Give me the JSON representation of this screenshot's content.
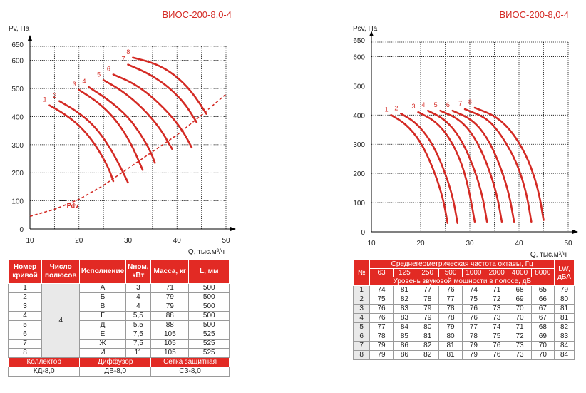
{
  "chart_data": [
    {
      "type": "line",
      "title": "ВИОС-200-8,0-4",
      "ylabel": "Pv, Па",
      "xlabel": "Q, тыс.м³/ч",
      "xlim": [
        10,
        50
      ],
      "ylim": [
        0,
        650
      ],
      "xticks": [
        "10",
        "20",
        "30",
        "40",
        "50"
      ],
      "yticks": [
        "0",
        "100",
        "200",
        "300",
        "400",
        "500",
        600,
        "650"
      ],
      "grid": true,
      "series": [
        {
          "name": "1",
          "points": [
            [
              14.0,
              440
            ],
            [
              17.0,
              410
            ],
            [
              20.0,
              370
            ],
            [
              23.0,
              310
            ],
            [
              26.0,
              220
            ],
            [
              27.0,
              170
            ]
          ]
        },
        {
          "name": "2",
          "points": [
            [
              16.0,
              455
            ],
            [
              19.5,
              420
            ],
            [
              23.0,
              370
            ],
            [
              26.0,
              300
            ],
            [
              28.5,
              220
            ],
            [
              30.0,
              165
            ]
          ]
        },
        {
          "name": "3",
          "points": [
            [
              20.0,
              495
            ],
            [
              24.0,
              450
            ],
            [
              27.5,
              390
            ],
            [
              30.5,
              310
            ],
            [
              33.0,
              210
            ]
          ]
        },
        {
          "name": "4",
          "points": [
            [
              22.0,
              505
            ],
            [
              26.0,
              460
            ],
            [
              30.0,
              400
            ],
            [
              32.5,
              340
            ],
            [
              34.5,
              280
            ],
            [
              35.5,
              235
            ]
          ]
        },
        {
          "name": "5",
          "points": [
            [
              25.0,
              530
            ],
            [
              29.0,
              490
            ],
            [
              33.0,
              430
            ],
            [
              36.5,
              360
            ],
            [
              39.0,
              285
            ]
          ]
        },
        {
          "name": "6",
          "points": [
            [
              27.0,
              550
            ],
            [
              31.0,
              520
            ],
            [
              35.0,
              470
            ],
            [
              39.0,
              400
            ],
            [
              41.5,
              340
            ],
            [
              43.0,
              290
            ]
          ]
        },
        {
          "name": "7",
          "points": [
            [
              30.0,
              585
            ],
            [
              34.0,
              555
            ],
            [
              38.0,
              510
            ],
            [
              41.5,
              450
            ],
            [
              44.0,
              380
            ]
          ]
        },
        {
          "name": "8",
          "points": [
            [
              31.0,
              610
            ],
            [
              35.5,
              590
            ],
            [
              39.5,
              550
            ],
            [
              43.0,
              490
            ],
            [
              46.0,
              410
            ]
          ]
        }
      ],
      "pdv_curve": {
        "name": "Pdv",
        "points": [
          [
            10,
            45
          ],
          [
            15,
            70
          ],
          [
            20,
            105
          ],
          [
            25,
            155
          ],
          [
            30,
            215
          ],
          [
            35,
            275
          ],
          [
            40,
            335
          ],
          [
            45,
            405
          ],
          [
            50,
            480
          ]
        ]
      },
      "colors": {
        "curve": "#d42a24",
        "grid": "#000000"
      }
    },
    {
      "type": "line",
      "title": "ВИОС-200-8,0-4",
      "ylabel": "Psv, Па",
      "xlabel": "Q, тыс.м³/ч",
      "xlim": [
        10,
        50
      ],
      "ylim": [
        0,
        650
      ],
      "xticks": [
        "10",
        "20",
        "30",
        "40",
        "50"
      ],
      "yticks": [
        "0",
        "100",
        "200",
        "300",
        "400",
        "500",
        "600",
        "650"
      ],
      "grid": true,
      "series": [
        {
          "name": "1",
          "points": [
            [
              14.0,
              400
            ],
            [
              17.0,
              370
            ],
            [
              20.0,
              310
            ],
            [
              22.5,
              220
            ],
            [
              24.5,
              120
            ],
            [
              25.5,
              30
            ]
          ]
        },
        {
          "name": "2",
          "points": [
            [
              16.0,
              405
            ],
            [
              19.0,
              375
            ],
            [
              22.0,
              315
            ],
            [
              24.5,
              225
            ],
            [
              26.5,
              125
            ],
            [
              27.5,
              30
            ]
          ]
        },
        {
          "name": "3",
          "points": [
            [
              19.5,
              410
            ],
            [
              23.0,
              380
            ],
            [
              26.0,
              320
            ],
            [
              28.5,
              230
            ],
            [
              30.0,
              130
            ],
            [
              31.0,
              35
            ]
          ]
        },
        {
          "name": "4",
          "points": [
            [
              21.5,
              415
            ],
            [
              25.0,
              385
            ],
            [
              28.0,
              325
            ],
            [
              30.5,
              235
            ],
            [
              32.5,
              130
            ],
            [
              33.5,
              35
            ]
          ]
        },
        {
          "name": "5",
          "points": [
            [
              24.0,
              415
            ],
            [
              28.0,
              385
            ],
            [
              31.0,
              325
            ],
            [
              33.5,
              235
            ],
            [
              35.5,
              130
            ],
            [
              36.5,
              35
            ]
          ]
        },
        {
          "name": "6",
          "points": [
            [
              26.5,
              415
            ],
            [
              30.5,
              385
            ],
            [
              33.5,
              325
            ],
            [
              36.0,
              235
            ],
            [
              38.0,
              130
            ],
            [
              39.0,
              35
            ]
          ]
        },
        {
          "name": "7",
          "points": [
            [
              29.0,
              420
            ],
            [
              33.5,
              390
            ],
            [
              36.5,
              330
            ],
            [
              39.5,
              240
            ],
            [
              41.5,
              135
            ],
            [
              42.5,
              35
            ]
          ]
        },
        {
          "name": "8",
          "points": [
            [
              31.0,
              425
            ],
            [
              35.5,
              395
            ],
            [
              39.0,
              335
            ],
            [
              42.0,
              245
            ],
            [
              44.0,
              140
            ],
            [
              45.0,
              40
            ]
          ]
        }
      ],
      "colors": {
        "curve": "#d42a24",
        "grid": "#000000"
      }
    },
    {
      "type": "table",
      "headers": [
        "Номер кривой",
        "Число полюсов",
        "Исполнение",
        "Nном, кВт",
        "Масса, кг",
        "L, мм"
      ],
      "poles": "4",
      "rows": [
        [
          "1",
          "А",
          "3",
          "71",
          "500"
        ],
        [
          "2",
          "Б",
          "4",
          "79",
          "500"
        ],
        [
          "3",
          "В",
          "4",
          "79",
          "500"
        ],
        [
          "4",
          "Г",
          "5,5",
          "88",
          "500"
        ],
        [
          "5",
          "Д",
          "5,5",
          "88",
          "500"
        ],
        [
          "6",
          "Е",
          "7,5",
          "105",
          "525"
        ],
        [
          "7",
          "Ж",
          "7,5",
          "105",
          "525"
        ],
        [
          "8",
          "И",
          "11",
          "105",
          "525"
        ]
      ],
      "footer_labels": [
        "Коллектор",
        "Диффузор",
        "Сетка защитная"
      ],
      "footer_values": [
        "КД-8,0",
        "ДВ-8,0",
        "СЗ-8,0"
      ]
    },
    {
      "type": "table",
      "col_no": "№",
      "freq_title": "Среднегеометрическая частота октавы, Гц",
      "freqs": [
        "63",
        "125",
        "250",
        "500",
        "1000",
        "2000",
        "4000",
        "8000"
      ],
      "subtitle": "Уровень звуковой мощности в полосе, дБ",
      "lw_label": "LW, дБА",
      "rows": [
        [
          "1",
          "74",
          "81",
          "77",
          "76",
          "74",
          "71",
          "68",
          "65",
          "79"
        ],
        [
          "2",
          "75",
          "82",
          "78",
          "77",
          "75",
          "72",
          "69",
          "66",
          "80"
        ],
        [
          "3",
          "76",
          "83",
          "79",
          "78",
          "76",
          "73",
          "70",
          "67",
          "81"
        ],
        [
          "4",
          "76",
          "83",
          "79",
          "78",
          "76",
          "73",
          "70",
          "67",
          "81"
        ],
        [
          "5",
          "77",
          "84",
          "80",
          "79",
          "77",
          "74",
          "71",
          "68",
          "82"
        ],
        [
          "6",
          "78",
          "85",
          "81",
          "80",
          "78",
          "75",
          "72",
          "69",
          "83"
        ],
        [
          "7",
          "79",
          "86",
          "82",
          "81",
          "79",
          "76",
          "73",
          "70",
          "84"
        ],
        [
          "8",
          "79",
          "86",
          "82",
          "81",
          "79",
          "76",
          "73",
          "70",
          "84"
        ]
      ]
    }
  ]
}
